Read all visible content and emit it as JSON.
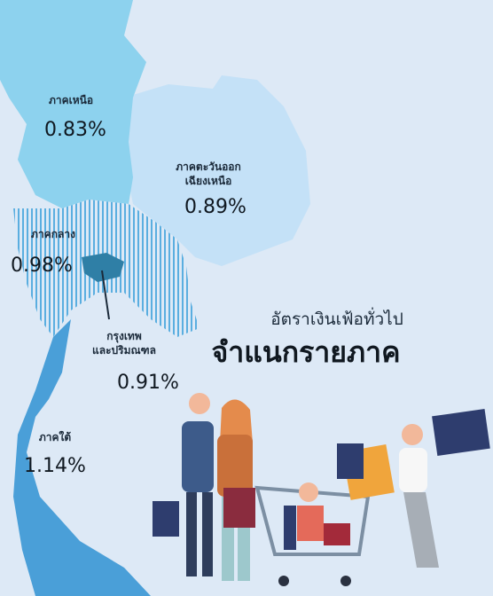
{
  "title": {
    "line1": "อัตราเงินเฟ้อทั่วไป",
    "line2": "จำแนกรายภาค"
  },
  "regions": [
    {
      "name": [
        "ภาคเหนือ"
      ],
      "value": "0.83%"
    },
    {
      "name": [
        "ภาคตะวันออก",
        "เฉียงเหนือ"
      ],
      "value": "0.89%"
    },
    {
      "name": [
        "ภาคกลาง"
      ],
      "value": "0.98%"
    },
    {
      "name": [
        "กรุงเทพ",
        "และปริมณฑล"
      ],
      "value": "0.91%"
    },
    {
      "name": [
        "ภาคใต้"
      ],
      "value": "1.14%"
    }
  ]
}
